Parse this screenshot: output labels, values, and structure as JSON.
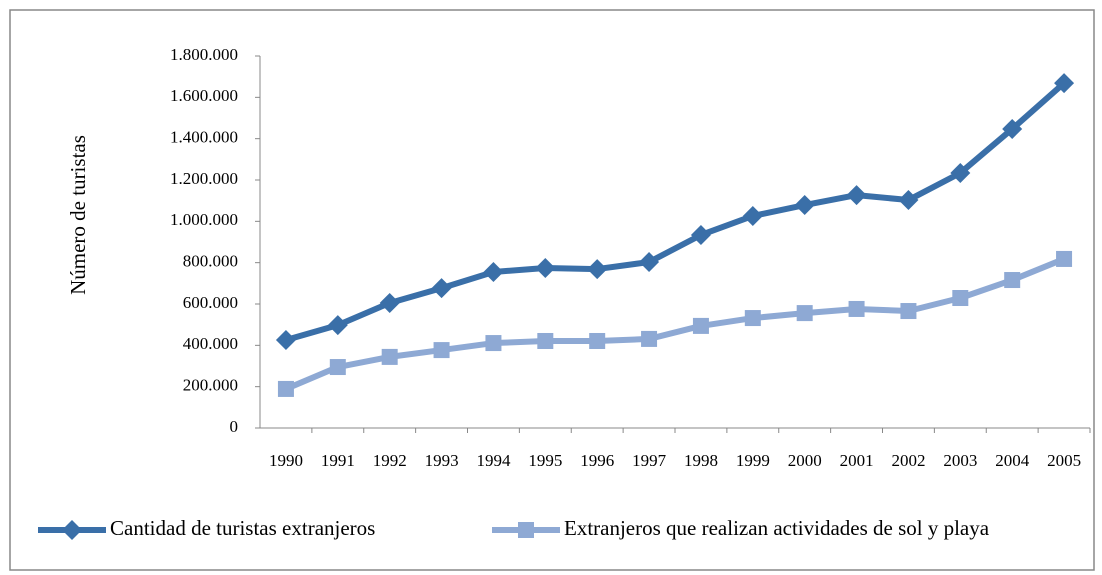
{
  "chart_data": {
    "type": "line",
    "y_label": "Número de turistas",
    "categories": [
      "1990",
      "1991",
      "1992",
      "1993",
      "1994",
      "1995",
      "1996",
      "1997",
      "1998",
      "1999",
      "2000",
      "2001",
      "2002",
      "2003",
      "2004",
      "2005"
    ],
    "series": [
      {
        "name": "Cantidad de turistas extranjeros",
        "color": "#3a6fa8",
        "marker": "diamond",
        "values": [
          426000,
          498000,
          605000,
          677000,
          755000,
          774000,
          769000,
          803000,
          934000,
          1026000,
          1079000,
          1127000,
          1103000,
          1234000,
          1447000,
          1669000
        ]
      },
      {
        "name": "Extranjeros que realizan actividades de sol y playa",
        "color": "#8ea9d4",
        "marker": "square",
        "values": [
          189000,
          295000,
          344000,
          377000,
          411000,
          421000,
          421000,
          431000,
          494000,
          532000,
          556000,
          576000,
          566000,
          629000,
          716000,
          818000
        ]
      }
    ],
    "ylim": [
      0,
      1800000
    ],
    "yticks": [
      0,
      {
        "value": 200000,
        "label": "200.000"
      },
      {
        "value": 400000,
        "label": "400.000"
      },
      {
        "value": 600000,
        "label": "600.000"
      },
      {
        "value": 800000,
        "label": "800.000"
      },
      {
        "value": 1000000,
        "label": "1.000.000"
      },
      {
        "value": 1200000,
        "label": "1.200.000"
      },
      {
        "value": 1400000,
        "label": "1.400.000"
      },
      {
        "value": 1600000,
        "label": "1.600.000"
      },
      {
        "value": 1800000,
        "label": "1.800.000"
      }
    ],
    "grid": false,
    "legend": "bottom"
  }
}
